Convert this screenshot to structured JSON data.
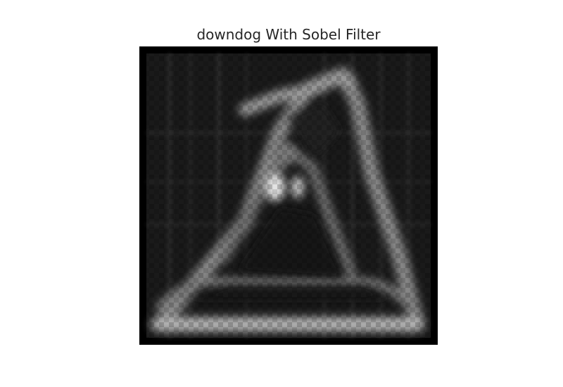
{
  "figure": {
    "title": "downdog With Sobel Filter"
  },
  "image": {
    "description_icon": "sobel-edge-image",
    "colormap": "gray"
  }
}
